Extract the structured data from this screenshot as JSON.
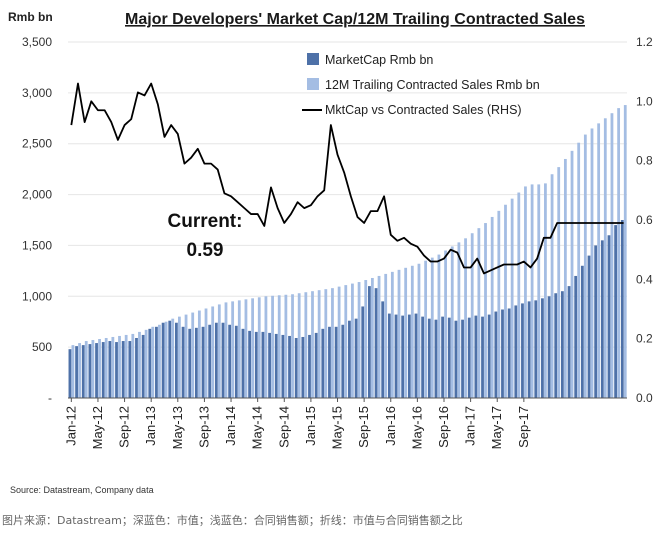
{
  "chart_data": {
    "type": "bar+line",
    "title": "Major Developers' Market Cap/12M Trailing Contracted Sales",
    "left_axis_label": "Rmb bn",
    "left_ylim": [
      0,
      3500
    ],
    "left_ticks": [
      "-",
      "500",
      "1,000",
      "1,500",
      "2,000",
      "2,500",
      "3,000",
      "3,500"
    ],
    "left_tick_values": [
      0,
      500,
      1000,
      1500,
      2000,
      2500,
      3000,
      3500
    ],
    "right_ylim": [
      0.0,
      1.2
    ],
    "right_ticks": [
      "0.0",
      "0.2",
      "0.4",
      "0.6",
      "0.8",
      "1.0",
      "1.2"
    ],
    "right_tick_values": [
      0.0,
      0.2,
      0.4,
      0.6,
      0.8,
      1.0,
      1.2
    ],
    "x_tick_labels": [
      "Jan-12",
      "May-12",
      "Sep-12",
      "Jan-13",
      "May-13",
      "Sep-13",
      "Jan-14",
      "May-14",
      "Sep-14",
      "Jan-15",
      "May-15",
      "Sep-15",
      "Jan-16",
      "May-16",
      "Sep-16",
      "Jan-17",
      "May-17",
      "Sep-17"
    ],
    "x_tick_start_index": 0,
    "x_tick_step": 4,
    "series": [
      {
        "name": "MarketCap Rmb bn",
        "type": "bar",
        "axis": "left",
        "color": "#4e71a8",
        "values": [
          480,
          510,
          520,
          530,
          540,
          550,
          560,
          550,
          560,
          560,
          590,
          620,
          680,
          700,
          740,
          760,
          740,
          700,
          680,
          690,
          700,
          720,
          740,
          740,
          720,
          710,
          680,
          660,
          650,
          650,
          640,
          630,
          620,
          610,
          590,
          600,
          620,
          640,
          680,
          700,
          700,
          720,
          760,
          780,
          900,
          1100,
          1080,
          950,
          830,
          820,
          810,
          820,
          830,
          800,
          780,
          770,
          800,
          790,
          760,
          770,
          790,
          810,
          800,
          820,
          850,
          870,
          880,
          910,
          930,
          950,
          960,
          980,
          1000,
          1030,
          1050,
          1100,
          1200,
          1300,
          1400,
          1500,
          1550,
          1600,
          1700,
          1750
        ]
      },
      {
        "name": "12M Trailing Contracted Sales Rmb bn",
        "type": "bar",
        "axis": "left",
        "color": "#a4bde3",
        "values": [
          520,
          540,
          560,
          570,
          580,
          590,
          600,
          610,
          620,
          630,
          650,
          670,
          700,
          720,
          750,
          780,
          800,
          820,
          840,
          860,
          880,
          900,
          920,
          940,
          950,
          960,
          970,
          980,
          990,
          1000,
          1005,
          1010,
          1015,
          1020,
          1030,
          1040,
          1050,
          1060,
          1070,
          1080,
          1095,
          1110,
          1125,
          1140,
          1160,
          1180,
          1200,
          1220,
          1240,
          1260,
          1280,
          1300,
          1320,
          1350,
          1380,
          1410,
          1450,
          1490,
          1530,
          1570,
          1620,
          1670,
          1720,
          1780,
          1840,
          1900,
          1960,
          2020,
          2080,
          2100,
          2100,
          2110,
          2200,
          2270,
          2350,
          2430,
          2510,
          2590,
          2650,
          2700,
          2750,
          2800,
          2850,
          2880
        ]
      },
      {
        "name": "MktCap vs Contracted Sales (RHS)",
        "type": "line",
        "axis": "right",
        "color": "#000000",
        "values": [
          0.92,
          1.06,
          0.93,
          1.0,
          0.97,
          0.97,
          0.93,
          0.87,
          0.92,
          0.94,
          1.03,
          1.02,
          1.06,
          0.99,
          0.88,
          0.92,
          0.89,
          0.79,
          0.81,
          0.84,
          0.79,
          0.79,
          0.77,
          0.69,
          0.68,
          0.66,
          0.64,
          0.62,
          0.62,
          0.58,
          0.71,
          0.64,
          0.59,
          0.62,
          0.66,
          0.64,
          0.65,
          0.68,
          0.7,
          0.92,
          0.82,
          0.76,
          0.68,
          0.61,
          0.59,
          0.63,
          0.63,
          0.68,
          0.55,
          0.53,
          0.54,
          0.52,
          0.51,
          0.48,
          0.46,
          0.46,
          0.47,
          0.5,
          0.49,
          0.44,
          0.44,
          0.47,
          0.42,
          0.43,
          0.44,
          0.45,
          0.45,
          0.45,
          0.46,
          0.44,
          0.47,
          0.54,
          0.54,
          0.59,
          0.59,
          0.59,
          0.59,
          0.59,
          0.59,
          0.59,
          0.59,
          0.59,
          0.59,
          0.59
        ]
      }
    ],
    "annotation": {
      "line1": "Current:",
      "line2": "0.59"
    },
    "legend_position": "top-right"
  },
  "source": "Source: Datastream, Company data",
  "caption": "图片来源：Datastream；深蓝色：市值；浅蓝色：合同销售额；折线：市值与合同销售额之比"
}
